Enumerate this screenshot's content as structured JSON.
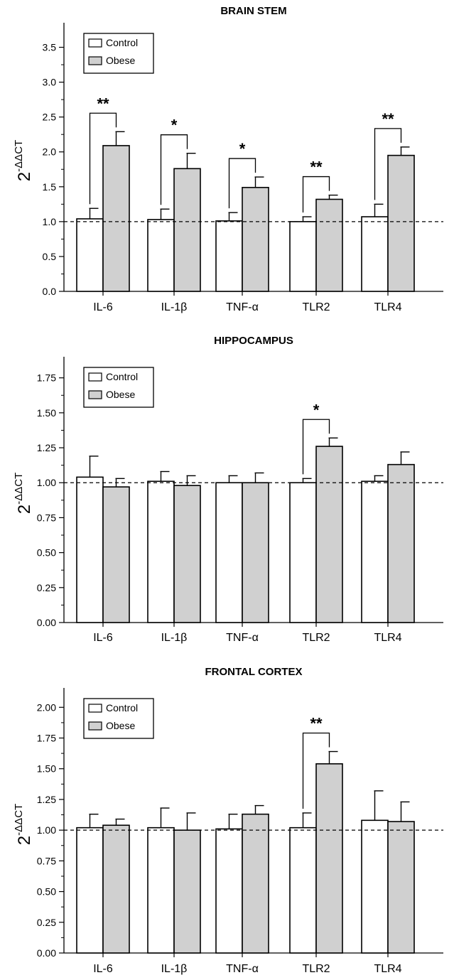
{
  "chart_data": [
    {
      "type": "bar",
      "title": "BRAIN STEM",
      "ylabel_base": "2",
      "ylabel_exp": "-ΔΔCT",
      "categories": [
        "IL-6",
        "IL-1β",
        "TNF-α",
        "TLR2",
        "TLR4"
      ],
      "series": [
        {
          "name": "Control",
          "color": "#ffffff",
          "values": [
            1.04,
            1.03,
            1.01,
            1.0,
            1.07
          ],
          "errors": [
            0.15,
            0.15,
            0.12,
            0.07,
            0.18
          ]
        },
        {
          "name": "Obese",
          "color": "#d0d0d0",
          "values": [
            2.09,
            1.76,
            1.49,
            1.32,
            1.95
          ],
          "errors": [
            0.2,
            0.22,
            0.15,
            0.06,
            0.12
          ]
        }
      ],
      "ylim": [
        0,
        3.75
      ],
      "yticks": [
        "0.0",
        "0.5",
        "1.0",
        "1.5",
        "2.0",
        "2.5",
        "3.0",
        "3.5"
      ],
      "reference_line": 1.0,
      "significance": [
        {
          "category": "IL-6",
          "label": "**"
        },
        {
          "category": "IL-1β",
          "label": "*"
        },
        {
          "category": "TNF-α",
          "label": "*"
        },
        {
          "category": "TLR2",
          "label": "**"
        },
        {
          "category": "TLR4",
          "label": "**"
        }
      ],
      "legend_position": "top-left"
    },
    {
      "type": "bar",
      "title": "HIPPOCAMPUS",
      "ylabel_base": "2",
      "ylabel_exp": "-ΔΔCT",
      "categories": [
        "IL-6",
        "IL-1β",
        "TNF-α",
        "TLR2",
        "TLR4"
      ],
      "series": [
        {
          "name": "Control",
          "color": "#ffffff",
          "values": [
            1.04,
            1.01,
            1.0,
            1.0,
            1.01
          ],
          "errors": [
            0.15,
            0.07,
            0.05,
            0.03,
            0.04
          ]
        },
        {
          "name": "Obese",
          "color": "#d0d0d0",
          "values": [
            0.97,
            0.98,
            1.0,
            1.26,
            1.13
          ],
          "errors": [
            0.06,
            0.07,
            0.07,
            0.06,
            0.09
          ]
        }
      ],
      "ylim": [
        0,
        1.85
      ],
      "yticks": [
        "0.00",
        "0.25",
        "0.50",
        "0.75",
        "1.00",
        "1.25",
        "1.50",
        "1.75"
      ],
      "reference_line": 1.0,
      "significance": [
        {
          "category": "TLR2",
          "label": "*"
        }
      ],
      "legend_position": "top-left"
    },
    {
      "type": "bar",
      "title": "FRONTAL CORTEX",
      "ylabel_base": "2",
      "ylabel_exp": "-ΔΔCT",
      "categories": [
        "IL-6",
        "IL-1β",
        "TNF-α",
        "TLR2",
        "TLR4"
      ],
      "series": [
        {
          "name": "Control",
          "color": "#ffffff",
          "values": [
            1.02,
            1.02,
            1.01,
            1.02,
            1.08
          ],
          "errors": [
            0.11,
            0.16,
            0.12,
            0.12,
            0.24
          ]
        },
        {
          "name": "Obese",
          "color": "#d0d0d0",
          "values": [
            1.04,
            1.0,
            1.13,
            1.54,
            1.07
          ],
          "errors": [
            0.05,
            0.14,
            0.07,
            0.1,
            0.16
          ]
        }
      ],
      "ylim": [
        0,
        2.1
      ],
      "yticks": [
        "0.00",
        "0.25",
        "0.50",
        "0.75",
        "1.00",
        "1.25",
        "1.50",
        "1.75",
        "2.00"
      ],
      "reference_line": 1.0,
      "significance": [
        {
          "category": "TLR2",
          "label": "**"
        }
      ],
      "legend_position": "top-left"
    }
  ]
}
